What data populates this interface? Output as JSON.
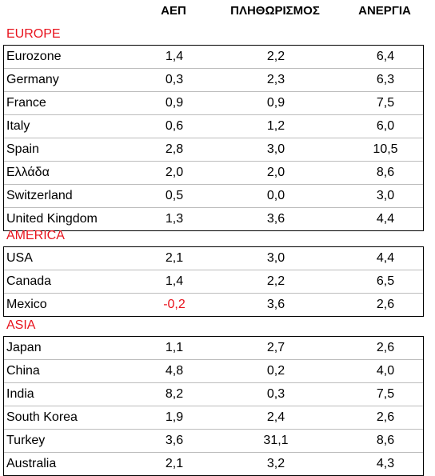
{
  "headers": [
    "ΑΕΠ",
    "ΠΛΗΘΩΡΙΣΜΟΣ",
    "ΑΝΕΡΓΙΑ"
  ],
  "accent_color": "#e8131d",
  "sections": [
    {
      "name": "EUROPE",
      "rows": [
        {
          "country": "Eurozone",
          "gdp": "1,4",
          "inflation": "2,2",
          "unemployment": "6,4"
        },
        {
          "country": "Germany",
          "gdp": "0,3",
          "inflation": "2,3",
          "unemployment": "6,3"
        },
        {
          "country": "France",
          "gdp": "0,9",
          "inflation": "0,9",
          "unemployment": "7,5"
        },
        {
          "country": "Italy",
          "gdp": "0,6",
          "inflation": "1,2",
          "unemployment": "6,0"
        },
        {
          "country": "Spain",
          "gdp": "2,8",
          "inflation": "3,0",
          "unemployment": "10,5"
        },
        {
          "country": "Ελλάδα",
          "gdp": "2,0",
          "inflation": "2,0",
          "unemployment": "8,6"
        },
        {
          "country": "Switzerland",
          "gdp": "0,5",
          "inflation": "0,0",
          "unemployment": "3,0"
        },
        {
          "country": "United Kingdom",
          "gdp": "1,3",
          "inflation": "3,6",
          "unemployment": "4,4"
        }
      ]
    },
    {
      "name": "AMERICA",
      "rows": [
        {
          "country": "USA",
          "gdp": "2,1",
          "inflation": "3,0",
          "unemployment": "4,4"
        },
        {
          "country": "Canada",
          "gdp": "1,4",
          "inflation": "2,2",
          "unemployment": "6,5"
        },
        {
          "country": "Mexico",
          "gdp": "-0,2",
          "inflation": "3,6",
          "unemployment": "2,6"
        }
      ]
    },
    {
      "name": "ASIA",
      "rows": [
        {
          "country": "Japan",
          "gdp": "1,1",
          "inflation": "2,7",
          "unemployment": "2,6"
        },
        {
          "country": "China",
          "gdp": "4,8",
          "inflation": "0,2",
          "unemployment": "4,0"
        },
        {
          "country": "India",
          "gdp": "8,2",
          "inflation": "0,3",
          "unemployment": "7,5"
        },
        {
          "country": "South Korea",
          "gdp": "1,9",
          "inflation": "2,4",
          "unemployment": "2,6"
        },
        {
          "country": "Turkey",
          "gdp": "3,6",
          "inflation": "31,1",
          "unemployment": "8,6"
        },
        {
          "country": "Australia",
          "gdp": "2,1",
          "inflation": "3,2",
          "unemployment": "4,3"
        }
      ]
    }
  ]
}
